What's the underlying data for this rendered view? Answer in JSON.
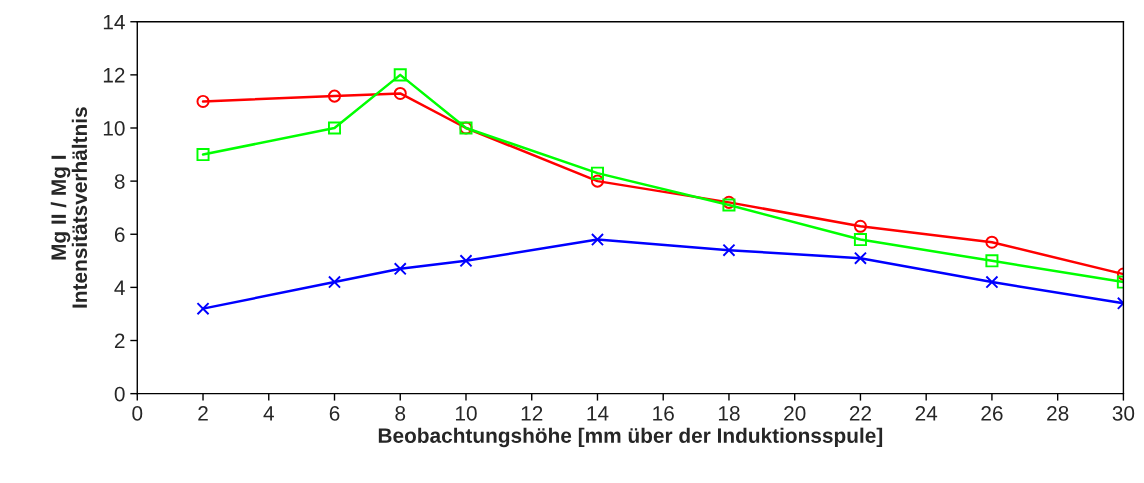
{
  "chart_data": {
    "type": "line",
    "xlabel": "Beobachtungshöhe [mm über der Induktionsspule]",
    "ylabel": "Mg II / Mg I\nIntensitätsverhältnis",
    "x": [
      2,
      6,
      8,
      10,
      14,
      18,
      22,
      26,
      30
    ],
    "series": [
      {
        "color": "#ff0000",
        "marker": "circle",
        "values": [
          11.0,
          11.2,
          11.3,
          10.0,
          8.0,
          7.2,
          6.3,
          5.7,
          4.5
        ]
      },
      {
        "color": "#00ff00",
        "marker": "square",
        "values": [
          9.0,
          10.0,
          12.0,
          10.0,
          8.3,
          7.1,
          5.8,
          5.0,
          4.2
        ]
      },
      {
        "color": "#0000ff",
        "marker": "cross",
        "values": [
          3.2,
          4.2,
          4.7,
          5.0,
          5.8,
          5.4,
          5.1,
          4.2,
          3.4
        ]
      }
    ],
    "xlim": [
      0,
      30
    ],
    "xticks": [
      0,
      2,
      4,
      6,
      8,
      10,
      12,
      14,
      16,
      18,
      20,
      22,
      24,
      26,
      28,
      30
    ],
    "ylim": [
      0,
      14
    ],
    "yticks": [
      0,
      2,
      4,
      6,
      8,
      10,
      12,
      14
    ],
    "grid": false,
    "legend": false
  }
}
